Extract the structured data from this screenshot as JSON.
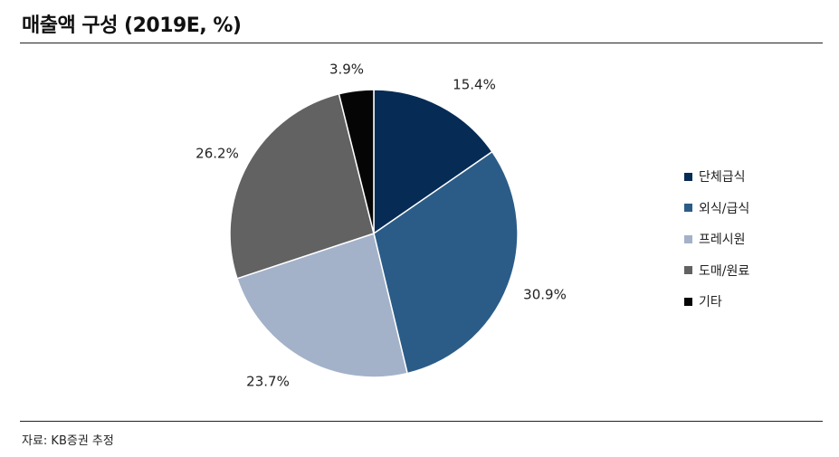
{
  "header": {
    "title": "매출액 구성 (2019E, %)"
  },
  "footer": {
    "source": "자료: KB증권 추정"
  },
  "chart_data": {
    "type": "pie",
    "title": "매출액 구성 (2019E, %)",
    "slices": [
      {
        "name": "단체급식",
        "value": 15.4,
        "label": "15.4%",
        "color": "#062b55"
      },
      {
        "name": "외식/급식",
        "value": 30.9,
        "label": "30.9%",
        "color": "#2b5c87"
      },
      {
        "name": "프레시원",
        "value": 23.7,
        "label": "23.7%",
        "color": "#a3b2c9"
      },
      {
        "name": "도매/원료",
        "value": 26.2,
        "label": "26.2%",
        "color": "#626262"
      },
      {
        "name": "기타",
        "value": 3.9,
        "label": "3.9%",
        "color": "#050505"
      }
    ],
    "legend_position": "right"
  }
}
